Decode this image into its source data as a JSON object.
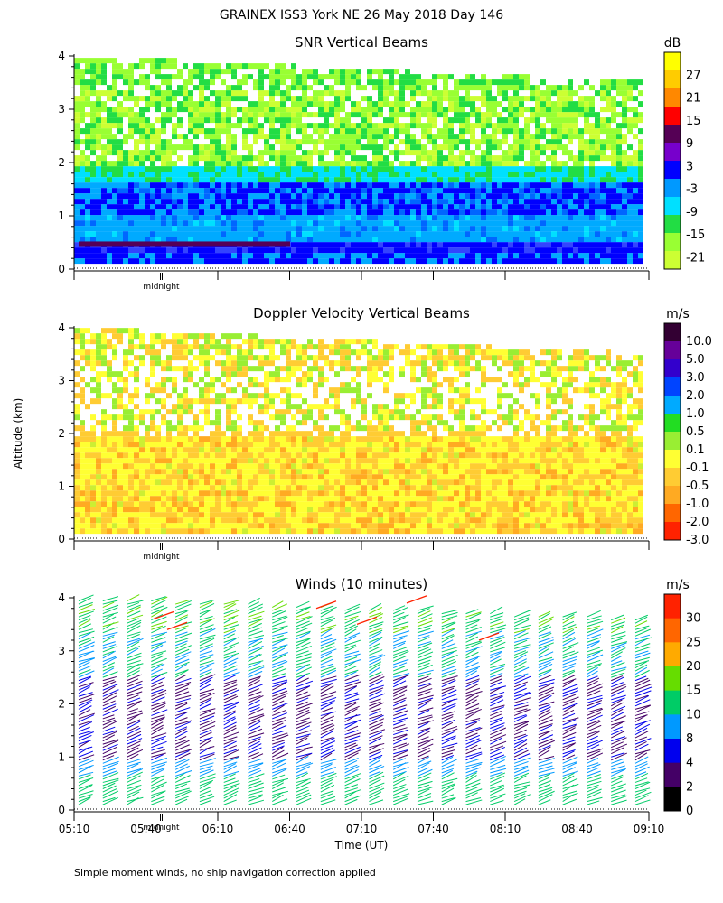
{
  "title": "GRAINEX ISS3 York NE  26 May 2018 Day 146",
  "y_axis_label": "Altitude (km)",
  "x_axis_label": "Time (UT)",
  "midnight_label": "midnight",
  "footer": "Simple moment winds, no ship navigation correction applied",
  "x_ticks": [
    "05:10",
    "05:40",
    "06:10",
    "06:40",
    "07:10",
    "07:40",
    "08:10",
    "08:40",
    "09:10"
  ],
  "y_ticks": [
    "0",
    "1",
    "2",
    "3",
    "4"
  ],
  "chart_data": [
    {
      "type": "heatmap",
      "title": "SNR Vertical Beams",
      "unit": "dB",
      "xlim": [
        "05:10",
        "09:10"
      ],
      "ylim": [
        0,
        4
      ],
      "colorbar_ticks": [
        "27",
        "21",
        "15",
        "9",
        "3",
        "-3",
        "-9",
        "-15",
        "-21"
      ],
      "colorbar_colors": [
        "#ffff00",
        "#ffcc00",
        "#ff8800",
        "#ff0000",
        "#550055",
        "#7700cc",
        "#0000ff",
        "#0099ff",
        "#00e0ff",
        "#22dd44",
        "#99ff33",
        "#ccff33"
      ],
      "description_regions": [
        {
          "altitude_km": [
            0,
            0.6
          ],
          "snr_db": -3
        },
        {
          "altitude_km": [
            0.6,
            1.1
          ],
          "snr_db": -9
        },
        {
          "altitude_km": [
            1.1,
            1.7
          ],
          "snr_db": -3
        },
        {
          "altitude_km": [
            1.7,
            3.9
          ],
          "snr_db": -18
        }
      ]
    },
    {
      "type": "heatmap",
      "title": "Doppler Velocity Vertical Beams",
      "unit": "m/s",
      "xlim": [
        "05:10",
        "09:10"
      ],
      "ylim": [
        0,
        4
      ],
      "colorbar_ticks": [
        "10.0",
        "5.0",
        "3.0",
        "2.0",
        "1.0",
        "0.5",
        "0.1",
        "-0.1",
        "-0.5",
        "-1.0",
        "-2.0",
        "-3.0"
      ],
      "colorbar_colors": [
        "#330033",
        "#660099",
        "#3300cc",
        "#0044ff",
        "#00aaff",
        "#22dd22",
        "#99ee33",
        "#ffff33",
        "#ffcc33",
        "#ffaa22",
        "#ff6600",
        "#ff2200"
      ]
    },
    {
      "type": "scatter",
      "title": "Winds (10 minutes)",
      "unit": "m/s",
      "xlim": [
        "05:10",
        "09:10"
      ],
      "ylim": [
        0,
        4
      ],
      "colorbar_ticks": [
        "30",
        "25",
        "20",
        "15",
        "10",
        "8",
        "4",
        "2",
        "0"
      ],
      "colorbar_colors": [
        "#ff2200",
        "#ff6600",
        "#ffaa00",
        "#66dd00",
        "#00cc66",
        "#0099ff",
        "#0000ee",
        "#440066",
        "#000000"
      ]
    }
  ]
}
